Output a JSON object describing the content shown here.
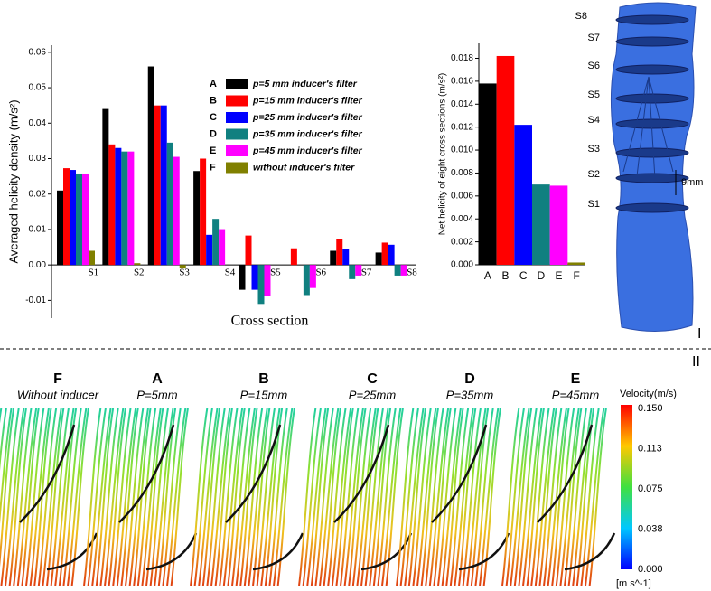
{
  "chart_data": [
    {
      "type": "bar",
      "ylabel": "Averaged helicity density (m/s²)",
      "xlabel": "Cross section",
      "categories": [
        "S1",
        "S2",
        "S3",
        "S4",
        "S5",
        "S6",
        "S7",
        "S8"
      ],
      "series": [
        {
          "key": "A",
          "name": "p=5 mm inducer's filter",
          "color": "#000000",
          "values": [
            0.021,
            0.044,
            0.056,
            0.0265,
            -0.007,
            0,
            0.004,
            0.0035
          ]
        },
        {
          "key": "B",
          "name": "p=15 mm inducer's filter",
          "color": "#ff0000",
          "values": [
            0.0273,
            0.034,
            0.045,
            0.03,
            0.0083,
            0.0047,
            0.0072,
            0.0063
          ]
        },
        {
          "key": "C",
          "name": "p=25 mm inducer's filter",
          "color": "#0000ff",
          "values": [
            0.0268,
            0.033,
            0.045,
            0.0085,
            -0.007,
            0,
            0.0046,
            0.0057
          ]
        },
        {
          "key": "D",
          "name": "p=35 mm inducer's filter",
          "color": "#108080",
          "values": [
            0.0258,
            0.032,
            0.0345,
            0.013,
            -0.011,
            -0.0085,
            -0.004,
            -0.003
          ]
        },
        {
          "key": "E",
          "name": "p=45 mm inducer's filter",
          "color": "#ff00ff",
          "values": [
            0.0258,
            0.032,
            0.0305,
            0.0101,
            -0.0088,
            -0.0065,
            -0.003,
            -0.003
          ]
        },
        {
          "key": "F",
          "name": "without inducer's filter",
          "color": "#808000",
          "values": [
            0.004,
            0.0005,
            -0.001,
            0,
            0,
            0,
            0,
            0
          ]
        }
      ],
      "ylim": [
        -0.015,
        0.062
      ],
      "yticks": [
        -0.01,
        {
          "value": 0,
          "label": "0.00"
        },
        0.01,
        0.02,
        0.03,
        0.04,
        0.05,
        0.06
      ]
    },
    {
      "type": "bar",
      "ylabel": "Net helicity of eight cross sections (m/s²)",
      "categories": [
        "A",
        "B",
        "C",
        "D",
        "E",
        "F"
      ],
      "values": [
        0.0158,
        0.0182,
        0.0122,
        0.007,
        0.0069,
        0.0002
      ],
      "colors": [
        "#000000",
        "#ff0000",
        "#0000ff",
        "#108080",
        "#ff00ff",
        "#808000"
      ],
      "ylim": [
        0,
        0.0193
      ],
      "yticks": [
        {
          "value": 0,
          "label": "0.000"
        },
        0.002,
        0.004,
        0.006,
        0.008,
        {
          "value": 0.01,
          "label": "0.010"
        },
        0.012,
        0.014,
        0.016,
        0.018
      ]
    }
  ],
  "vessel": {
    "sections": [
      "S8",
      "S7",
      "S6",
      "S5",
      "S4",
      "S3",
      "S2",
      "S1"
    ],
    "spacing": "9mm",
    "panel": "I"
  },
  "streamlines": {
    "panel": "II",
    "cases": [
      {
        "letter": "F",
        "label": "Without  inducer"
      },
      {
        "letter": "A",
        "label": "P=5mm"
      },
      {
        "letter": "B",
        "label": "P=15mm"
      },
      {
        "letter": "C",
        "label": "P=25mm"
      },
      {
        "letter": "D",
        "label": "P=35mm"
      },
      {
        "letter": "E",
        "label": "P=45mm"
      }
    ],
    "colorbar": {
      "title": "Velocity(m/s)",
      "ticks": [
        "0.150",
        "0.113",
        "0.075",
        "0.038",
        "0.000"
      ],
      "unit": "[m s^-1]"
    }
  }
}
